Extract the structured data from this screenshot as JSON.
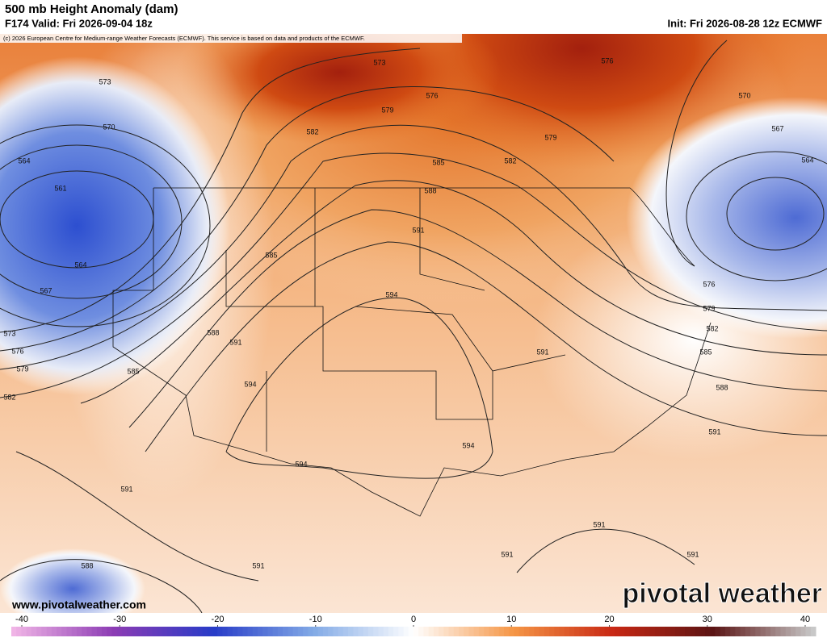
{
  "header": {
    "title": "500 mb Height Anomaly (dam)",
    "valid": "F174 Valid: Fri 2026-09-04 18z",
    "init": "Init: Fri 2026-08-28 12z ECMWF",
    "credit": "(c) 2026 European Centre for Medium-range Weather Forecasts (ECMWF). This service is based on data and products of the ECMWF."
  },
  "map": {
    "contour_labels": [
      573,
      570,
      564,
      561,
      564,
      567,
      573,
      576,
      579,
      582,
      585,
      588,
      591,
      585,
      594,
      591,
      594,
      588,
      585,
      582,
      579,
      576,
      573,
      576,
      579,
      582,
      591,
      594,
      594,
      591,
      591,
      588,
      591,
      591,
      591,
      591,
      588,
      585,
      582,
      579,
      576,
      570,
      567,
      564
    ],
    "website": "www.pivotalweather.com",
    "logo": "pivotal weather"
  },
  "colorbar": {
    "range": [
      -40,
      40
    ],
    "ticks": [
      -40,
      -30,
      -20,
      -10,
      0,
      10,
      20,
      30,
      40
    ]
  }
}
